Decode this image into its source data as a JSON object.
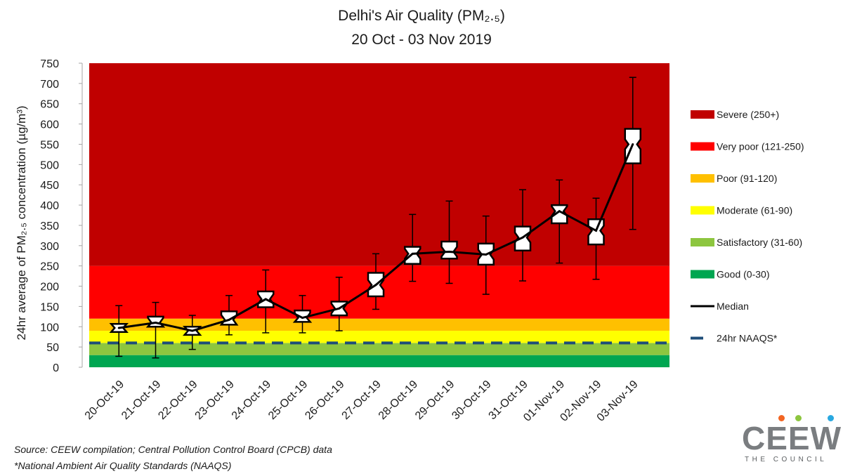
{
  "chart_data": {
    "type": "boxplot",
    "title": "Delhi's Air Quality (PM₂.₅)",
    "subtitle": "20 Oct - 03 Nov 2019",
    "ylabel": "24hr average of PM₂.₅  concentration (µg/m³)",
    "xlabel": "",
    "ylim": [
      0,
      750
    ],
    "yticks": [
      0,
      50,
      100,
      150,
      200,
      250,
      300,
      350,
      400,
      450,
      500,
      550,
      600,
      650,
      700,
      750
    ],
    "categories": [
      "20-Oct-19",
      "21-Oct-19",
      "22-Oct-19",
      "23-Oct-19",
      "24-Oct-19",
      "25-Oct-19",
      "26-Oct-19",
      "27-Oct-19",
      "28-Oct-19",
      "29-Oct-19",
      "30-Oct-19",
      "31-Oct-19",
      "01-Nov-19",
      "02-Nov-19",
      "03-Nov-19"
    ],
    "boxes": [
      {
        "min": 27,
        "q1": 87,
        "median": 97,
        "q3": 107,
        "max": 152
      },
      {
        "min": 23,
        "q1": 100,
        "median": 110,
        "q3": 125,
        "max": 160
      },
      {
        "min": 44,
        "q1": 80,
        "median": 90,
        "q3": 100,
        "max": 128
      },
      {
        "min": 80,
        "q1": 105,
        "median": 117,
        "q3": 138,
        "max": 177
      },
      {
        "min": 85,
        "q1": 148,
        "median": 168,
        "q3": 187,
        "max": 240
      },
      {
        "min": 85,
        "q1": 112,
        "median": 122,
        "q3": 140,
        "max": 177
      },
      {
        "min": 90,
        "q1": 128,
        "median": 145,
        "q3": 162,
        "max": 222
      },
      {
        "min": 143,
        "q1": 175,
        "median": 203,
        "q3": 233,
        "max": 280
      },
      {
        "min": 212,
        "q1": 255,
        "median": 280,
        "q3": 297,
        "max": 377
      },
      {
        "min": 207,
        "q1": 268,
        "median": 285,
        "q3": 310,
        "max": 410
      },
      {
        "min": 180,
        "q1": 253,
        "median": 278,
        "q3": 305,
        "max": 373
      },
      {
        "min": 213,
        "q1": 288,
        "median": 320,
        "q3": 347,
        "max": 438
      },
      {
        "min": 257,
        "q1": 355,
        "median": 385,
        "q3": 400,
        "max": 462
      },
      {
        "min": 217,
        "q1": 303,
        "median": 337,
        "q3": 365,
        "max": 417
      },
      {
        "min": 340,
        "q1": 503,
        "median": 550,
        "q3": 588,
        "max": 715
      }
    ],
    "bands": [
      {
        "label": "Good (0-30)",
        "from": 0,
        "to": 30,
        "color": "#00a651"
      },
      {
        "label": "Satisfactory (31-60)",
        "from": 30,
        "to": 60,
        "color": "#8dc63f"
      },
      {
        "label": "Moderate (61-90)",
        "from": 60,
        "to": 90,
        "color": "#ffff00"
      },
      {
        "label": "Poor (91-120)",
        "from": 90,
        "to": 120,
        "color": "#ffc000"
      },
      {
        "label": "Very poor (121-250)",
        "from": 120,
        "to": 250,
        "color": "#ff0000"
      },
      {
        "label": "Severe (250+)",
        "from": 250,
        "to": 750,
        "color": "#c00000"
      }
    ],
    "naaqs": {
      "label": "24hr NAAQS*",
      "value": 60,
      "color": "#1f4e79"
    },
    "median_label": "Median",
    "legend_position": "right",
    "grid": false
  },
  "footnotes": {
    "source": "Source: CEEW compilation; Central Pollution Control Board (CPCB) data",
    "naaqs_note": "*National Ambient Air Quality Standards (NAAQS)"
  },
  "logo": {
    "wordmark": "CEEW",
    "subtitle": "THE COUNCIL",
    "dot_colors": [
      "#f26522",
      "#8dc63f",
      "#29a8e0"
    ]
  }
}
